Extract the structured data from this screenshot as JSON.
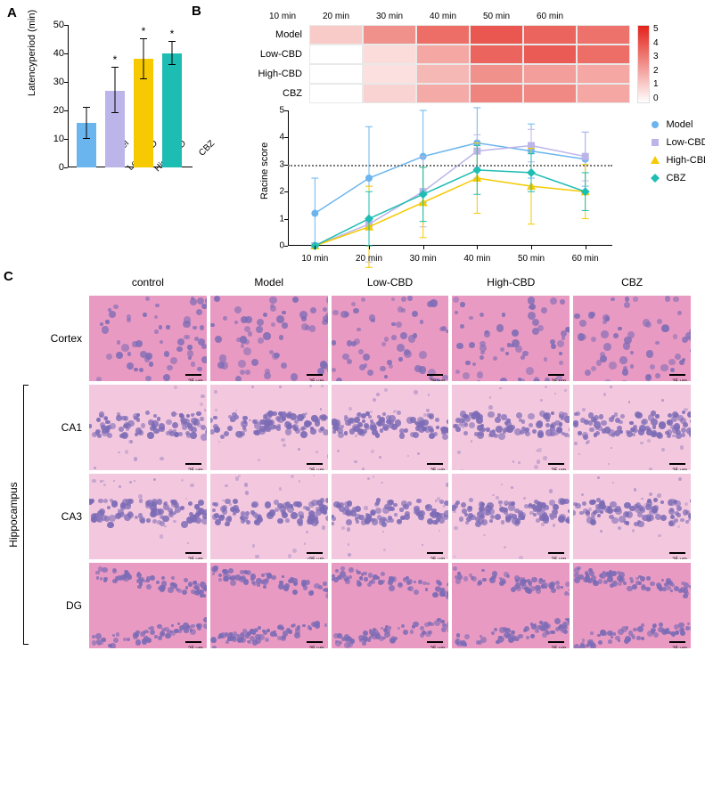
{
  "panelA": {
    "label": "A",
    "type": "bar",
    "ylabel": "Latencyperiod (min)",
    "ylim": [
      0,
      50
    ],
    "ytick_step": 10,
    "categories": [
      "Model",
      "Low-CBD",
      "High-CBD",
      "CBZ"
    ],
    "values": [
      15.5,
      27.0,
      38.0,
      40.0
    ],
    "err_low": [
      5.5,
      8.0,
      7.0,
      4.0
    ],
    "err_high": [
      5.5,
      8.0,
      7.0,
      4.0
    ],
    "bar_colors": [
      "#6bb5ef",
      "#bcb5ea",
      "#f6c900",
      "#1ebdb3"
    ],
    "sig": [
      "",
      "*",
      "*",
      "*"
    ],
    "label_fontsize": 11,
    "tick_fontsize": 10
  },
  "panelB": {
    "label": "B",
    "heatmap": {
      "type": "heatmap",
      "rows": [
        "Model",
        "Low-CBD",
        "High-CBD",
        "CBZ"
      ],
      "cols": [
        "10 min",
        "20 min",
        "30 min",
        "40 min",
        "50 min",
        "60 min"
      ],
      "values": [
        [
          1.2,
          2.5,
          3.3,
          3.8,
          3.5,
          3.2
        ],
        [
          0.0,
          0.8,
          2.0,
          3.5,
          3.7,
          3.3
        ],
        [
          0.0,
          0.7,
          1.6,
          2.5,
          2.2,
          2.0
        ],
        [
          0.0,
          1.0,
          1.9,
          2.8,
          2.7,
          2.0
        ]
      ],
      "vmin": 0,
      "vmax": 5,
      "color_low": "#ffffff",
      "color_high": "#e32219",
      "legend_ticks": [
        "5",
        "4",
        "3",
        "2",
        "1",
        "0"
      ]
    },
    "linechart": {
      "type": "line",
      "ylabel": "Racine score",
      "ylim": [
        0,
        5
      ],
      "ytick_step": 1,
      "x_categories": [
        "10 min",
        "20 min",
        "30 min",
        "40 min",
        "50 min",
        "60 min"
      ],
      "ref_line_y": 3,
      "ref_line_color": "#777777",
      "series": [
        {
          "name": "Model",
          "color": "#6bb5ef",
          "marker": "circle",
          "y": [
            1.2,
            2.5,
            3.3,
            3.8,
            3.5,
            3.2
          ],
          "err": [
            1.3,
            1.9,
            1.7,
            1.3,
            1.0,
            1.0
          ]
        },
        {
          "name": "Low-CBD",
          "color": "#bcb5ea",
          "marker": "square",
          "y": [
            0.0,
            0.8,
            2.0,
            3.5,
            3.7,
            3.3
          ],
          "err": [
            0.0,
            1.4,
            1.3,
            0.6,
            0.6,
            0.9
          ]
        },
        {
          "name": "High-CBD",
          "color": "#f6c900",
          "marker": "triangle",
          "y": [
            0.0,
            0.7,
            1.6,
            2.5,
            2.2,
            2.0
          ],
          "err": [
            0.0,
            1.5,
            1.3,
            1.3,
            1.4,
            1.0
          ]
        },
        {
          "name": "CBZ",
          "color": "#1ebdb3",
          "marker": "diamond",
          "y": [
            0.0,
            1.0,
            1.9,
            2.8,
            2.7,
            2.0
          ],
          "err": [
            0.0,
            1.0,
            1.0,
            0.9,
            0.7,
            0.7
          ]
        }
      ]
    }
  },
  "panelC": {
    "label": "C",
    "type": "histology-grid",
    "columns": [
      "control",
      "Model",
      "Low-CBD",
      "High-CBD",
      "CBZ"
    ],
    "rows": [
      "Cortex",
      "CA1",
      "CA3",
      "DG"
    ],
    "hippocampus_label": "Hippocampus",
    "hippocampus_rows": [
      "CA1",
      "CA3",
      "DG"
    ],
    "base_colors": {
      "eosin": "#e99ac2",
      "hematoxylin": "#7b6bb5",
      "light": "#f3c7de"
    },
    "scale_bar": "25 μm"
  }
}
